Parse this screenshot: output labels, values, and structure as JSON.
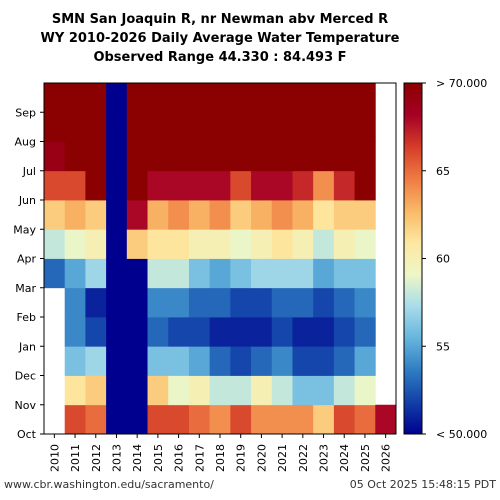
{
  "title_lines": [
    "SMN San Joaquin R, nr Newman abv Merced R",
    "WY 2010-2026 Daily Average Water Temperature",
    "Observed Range 44.330 : 84.493 F"
  ],
  "footer_left": "www.cbr.washington.edu/sacramento/",
  "footer_right": "05 Oct 2025 15:48:15 PDT",
  "chart_data": {
    "type": "heatmap",
    "x_categories": [
      "2010",
      "2011",
      "2012",
      "2013",
      "2014",
      "2015",
      "2016",
      "2017",
      "2018",
      "2019",
      "2020",
      "2021",
      "2022",
      "2023",
      "2024",
      "2025",
      "2026"
    ],
    "y_tick_labels": [
      "Oct",
      "Nov",
      "Dec",
      "Jan",
      "Feb",
      "Mar",
      "Apr",
      "May",
      "Jun",
      "Jul",
      "Aug",
      "Sep"
    ],
    "y_axis": "month of water year (Oct to Sep)",
    "colorbar": {
      "ticks": [
        {
          "value": 50,
          "label": "< 50.000"
        },
        {
          "value": 55,
          "label": "55"
        },
        {
          "value": 60,
          "label": "60"
        },
        {
          "value": 65,
          "label": "65"
        },
        {
          "value": 70,
          "label": "> 70.000"
        }
      ],
      "range": [
        50,
        70
      ],
      "colormap": [
        "#00008f",
        "#1240a8",
        "#2f7dc2",
        "#66b5dd",
        "#a8dcea",
        "#eef7c6",
        "#fde7a0",
        "#f9b967",
        "#ef7b43",
        "#d43d29",
        "#a50026",
        "#8b0000"
      ]
    },
    "monthly_temperature_F": {
      "2010": [
        null,
        null,
        null,
        null,
        null,
        53,
        58,
        62,
        66,
        69,
        70,
        70
      ],
      "2011": [
        66,
        61,
        56,
        54,
        54,
        55,
        59,
        63,
        66,
        70,
        70,
        70
      ],
      "2012": [
        65,
        62,
        57,
        52,
        51,
        57,
        60,
        62,
        70,
        70,
        70,
        70
      ],
      "2013": [
        50,
        50,
        50,
        50,
        50,
        50,
        50,
        50,
        50,
        50,
        50,
        50
      ],
      "2014": [
        50,
        50,
        50,
        50,
        50,
        50,
        62,
        68,
        70,
        70,
        70,
        70
      ],
      "2015": [
        66,
        62,
        56,
        53,
        54,
        58,
        61,
        63,
        68,
        70,
        70,
        70
      ],
      "2016": [
        66,
        59,
        56,
        52,
        54,
        58,
        61,
        64,
        68,
        70,
        70,
        70
      ],
      "2017": [
        65,
        60,
        55,
        52,
        53,
        56,
        60,
        63,
        68,
        70,
        70,
        70
      ],
      "2018": [
        64,
        58,
        53,
        51,
        53,
        55,
        60,
        64,
        68,
        70,
        70,
        70
      ],
      "2019": [
        66,
        58,
        52,
        51,
        52,
        56,
        59,
        62,
        66,
        70,
        70,
        70
      ],
      "2020": [
        64,
        60,
        53,
        51,
        52,
        57,
        60,
        63,
        68,
        70,
        70,
        70
      ],
      "2021": [
        64,
        58,
        54,
        52,
        53,
        57,
        61,
        64,
        68,
        70,
        70,
        70
      ],
      "2022": [
        64,
        56,
        52,
        51,
        53,
        57,
        60,
        63,
        67,
        70,
        70,
        70
      ],
      "2023": [
        62,
        56,
        52,
        51,
        52,
        55,
        58,
        61,
        64,
        70,
        70,
        70
      ],
      "2024": [
        66,
        58,
        53,
        52,
        53,
        56,
        60,
        62,
        67,
        70,
        70,
        70
      ],
      "2025": [
        65,
        59,
        55,
        53,
        54,
        56,
        59,
        62,
        70,
        70,
        70,
        70
      ],
      "2026": [
        68,
        null,
        null,
        null,
        null,
        null,
        null,
        null,
        null,
        null,
        null,
        null
      ]
    }
  }
}
